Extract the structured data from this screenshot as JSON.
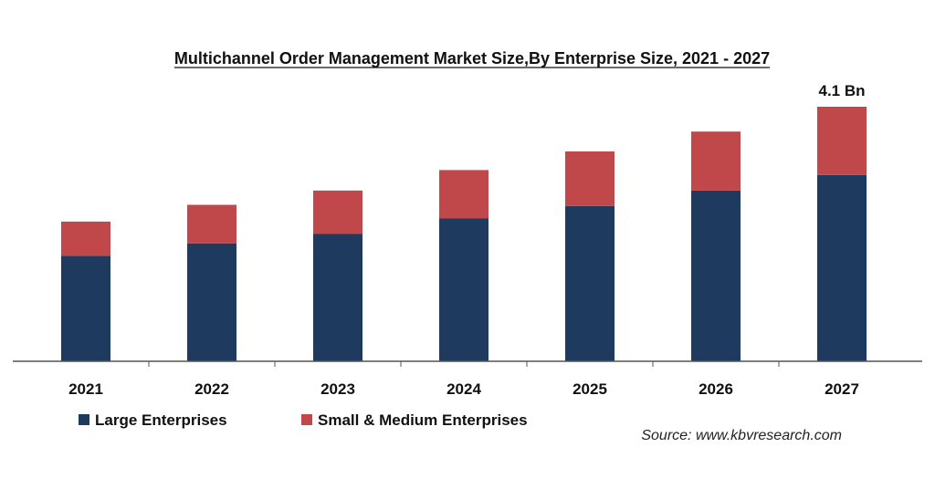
{
  "chart_data": {
    "type": "bar",
    "stacked": true,
    "title": "Multichannel Order Management Market Size,By Enterprise Size, 2021 - 2027",
    "categories": [
      "2021",
      "2022",
      "2023",
      "2024",
      "2025",
      "2026",
      "2027"
    ],
    "series": [
      {
        "name": "Large Enterprises",
        "color": "#1f3a5f",
        "values": [
          1.7,
          1.9,
          2.05,
          2.3,
          2.5,
          2.75,
          3.0
        ]
      },
      {
        "name": "Small & Medium Enterprises",
        "color": "#c0474a",
        "values": [
          0.55,
          0.62,
          0.7,
          0.78,
          0.88,
          0.95,
          1.1
        ]
      }
    ],
    "annotations": [
      {
        "category": "2027",
        "text": "4.1 Bn"
      }
    ],
    "xlabel": "",
    "ylabel": "",
    "ylim": [
      0,
      4.1
    ],
    "grid": false,
    "legend_position": "bottom-left",
    "source": "Source: www.kbvresearch.com"
  }
}
